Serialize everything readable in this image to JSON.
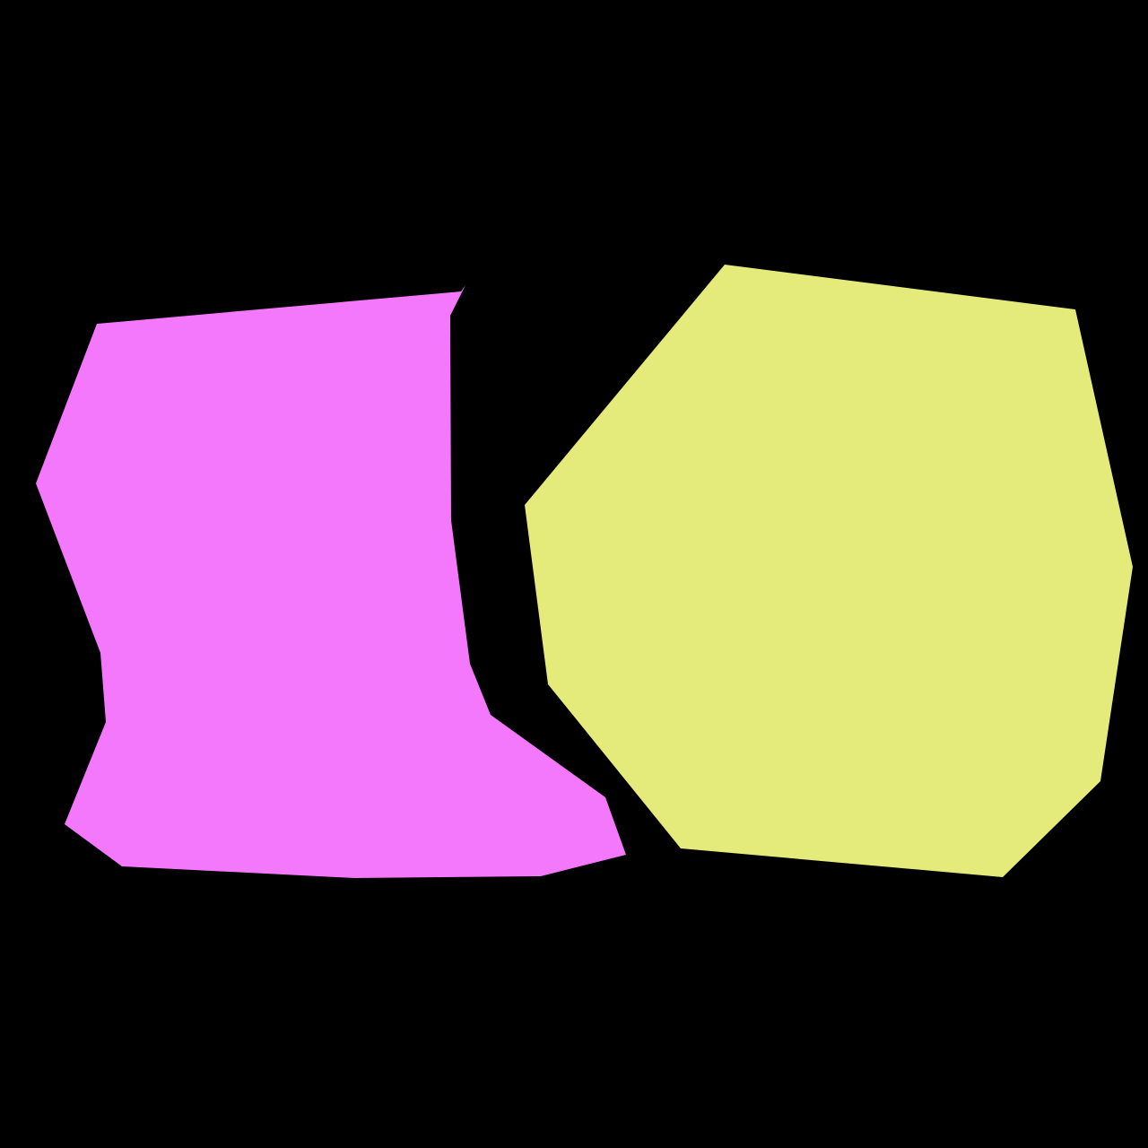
{
  "background": "#000000",
  "shapes": [
    {
      "name": "magenta-shape",
      "fill": "#F478FC"
    },
    {
      "name": "yellow-shape",
      "fill": "#E5EB7B"
    }
  ]
}
